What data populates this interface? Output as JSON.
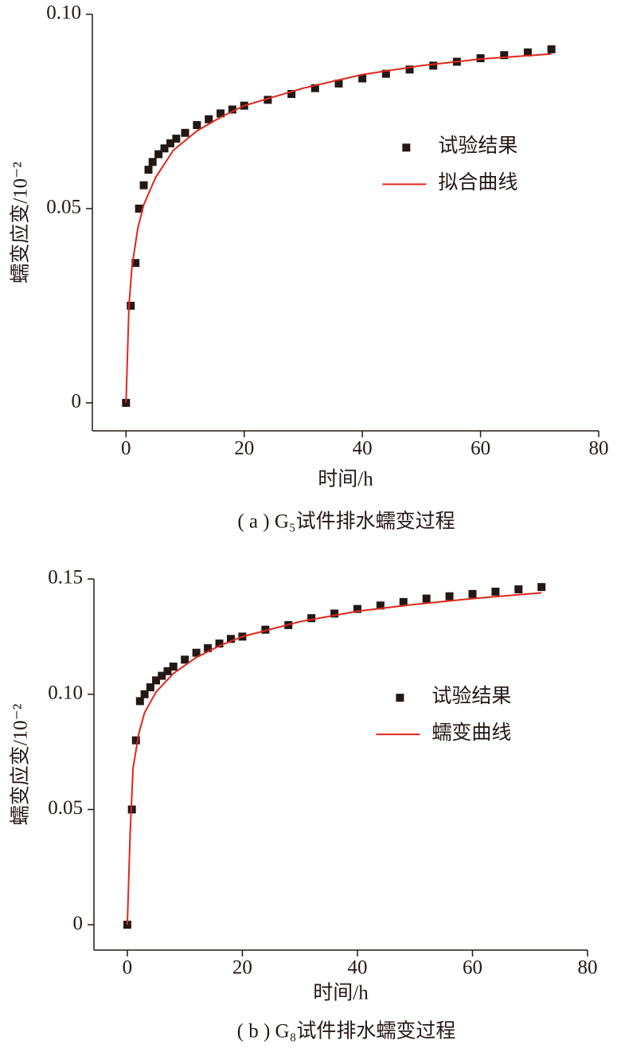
{
  "chart_data": [
    {
      "type": "scatter",
      "caption": "( a ) G₅试件排水蠕变过程",
      "xlabel": "时间/h",
      "ylabel": "蠕变应变/10⁻²",
      "xlim": [
        -5.7,
        80
      ],
      "xticks": [
        0,
        20,
        40,
        60,
        80
      ],
      "ylim": [
        -0.0072,
        0.1
      ],
      "yticks": [
        0,
        0.05,
        {
          "value": 0.1,
          "label": "0.10"
        }
      ],
      "legend": "center-right",
      "series": [
        {
          "name": "试验结果",
          "mode": "markers",
          "color": "#231815",
          "x": [
            0,
            0.8,
            1.6,
            2.2,
            3,
            3.8,
            4.5,
            5.5,
            6.5,
            7.5,
            8.5,
            10,
            12,
            14,
            16,
            18,
            20,
            24,
            28,
            32,
            36,
            40,
            44,
            48,
            52,
            56,
            60,
            64,
            68,
            72
          ],
          "values": [
            0,
            0.025,
            0.036,
            0.05,
            0.056,
            0.06,
            0.062,
            0.064,
            0.0655,
            0.0668,
            0.068,
            0.0695,
            0.0715,
            0.073,
            0.0745,
            0.0755,
            0.0765,
            0.078,
            0.0795,
            0.081,
            0.0822,
            0.0835,
            0.0847,
            0.0858,
            0.0868,
            0.0878,
            0.0887,
            0.0895,
            0.0902,
            0.091
          ]
        },
        {
          "name": "拟合曲线",
          "mode": "line",
          "color": "#e0261b",
          "x": [
            0,
            0.5,
            1,
            2,
            3,
            5,
            8,
            12,
            16,
            20,
            30,
            40,
            50,
            60,
            72
          ],
          "values": [
            0,
            0.025,
            0.035,
            0.045,
            0.051,
            0.058,
            0.065,
            0.07,
            0.0735,
            0.0765,
            0.081,
            0.0845,
            0.0868,
            0.0885,
            0.0898
          ]
        }
      ]
    },
    {
      "type": "scatter",
      "caption": "( b ) G₈试件排水蠕变过程",
      "xlabel": "时间/h",
      "ylabel": "蠕变应变/10⁻²",
      "xlim": [
        -5.8,
        80
      ],
      "xticks": [
        0,
        20,
        40,
        60,
        80
      ],
      "ylim": [
        -0.011,
        0.15
      ],
      "yticks": [
        0,
        0.05,
        {
          "value": 0.1,
          "label": "0.10"
        },
        0.15
      ],
      "legend": "center-right",
      "series": [
        {
          "name": "试验结果",
          "mode": "markers",
          "color": "#231815",
          "x": [
            0,
            0.8,
            1.5,
            2.2,
            3,
            4,
            5,
            6,
            7,
            8,
            10,
            12,
            14,
            16,
            18,
            20,
            24,
            28,
            32,
            36,
            40,
            44,
            48,
            52,
            56,
            60,
            64,
            68,
            72
          ],
          "values": [
            0,
            0.05,
            0.08,
            0.097,
            0.1,
            0.103,
            0.106,
            0.108,
            0.11,
            0.112,
            0.115,
            0.118,
            0.12,
            0.122,
            0.124,
            0.125,
            0.128,
            0.13,
            0.133,
            0.135,
            0.137,
            0.1385,
            0.14,
            0.1415,
            0.1425,
            0.1435,
            0.1445,
            0.1455,
            0.1465
          ]
        },
        {
          "name": "蠕变曲线",
          "mode": "line",
          "color": "#e0261b",
          "x": [
            0,
            0.5,
            1,
            2,
            3,
            5,
            8,
            12,
            16,
            20,
            30,
            40,
            50,
            60,
            72
          ],
          "values": [
            0,
            0.04,
            0.068,
            0.083,
            0.092,
            0.101,
            0.109,
            0.116,
            0.121,
            0.125,
            0.1315,
            0.136,
            0.139,
            0.1415,
            0.144
          ]
        }
      ]
    }
  ]
}
